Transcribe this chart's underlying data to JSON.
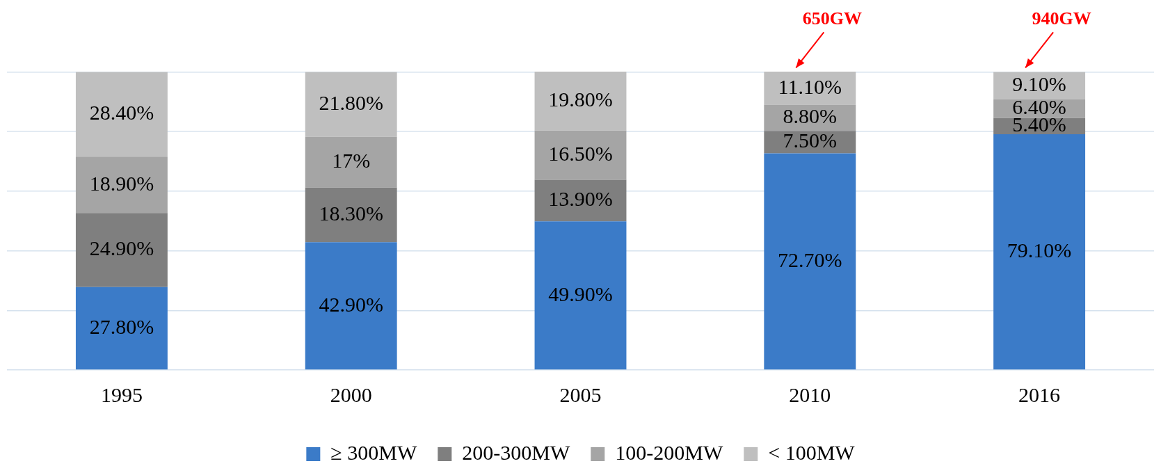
{
  "chart_data": {
    "type": "bar",
    "stacked": true,
    "categories": [
      "1995",
      "2000",
      "2005",
      "2010",
      "2016"
    ],
    "series": [
      {
        "name": "≥ 300MW",
        "color": "#3b7bc8",
        "values": [
          27.8,
          42.9,
          49.9,
          72.7,
          79.1
        ],
        "value_labels": [
          "27.80%",
          "42.90%",
          "49.90%",
          "72.70%",
          "79.10%"
        ]
      },
      {
        "name": "200-300MW",
        "color": "#7f7f7f",
        "values": [
          24.9,
          18.3,
          13.9,
          7.5,
          5.4
        ],
        "value_labels": [
          "24.90%",
          "18.30%",
          "13.90%",
          "7.50%",
          "5.40%"
        ]
      },
      {
        "name": "100-200MW",
        "color": "#a5a5a5",
        "values": [
          18.9,
          17,
          16.5,
          8.8,
          6.4
        ],
        "value_labels": [
          "18.90%",
          "17%",
          "16.50%",
          "8.80%",
          "6.40%"
        ]
      },
      {
        "name": "< 100MW",
        "color": "#bfbfbf",
        "values": [
          28.4,
          21.8,
          19.8,
          11.1,
          9.1
        ],
        "value_labels": [
          "28.40%",
          "21.80%",
          "19.80%",
          "11.10%",
          "9.10%"
        ]
      }
    ],
    "ylim": [
      0,
      100.1
    ],
    "yticks": [
      {
        "value": 0,
        "label": null
      },
      {
        "value": 20,
        "label": null
      },
      {
        "value": 40,
        "label": null
      },
      {
        "value": 60,
        "label": null
      },
      {
        "value": 80,
        "label": null
      },
      {
        "value": 100,
        "label": null
      }
    ],
    "tick_labels": "x",
    "grid": "y",
    "legend": "bottom",
    "annotations": [
      {
        "text": "650GW",
        "x": "2010",
        "y": 100
      },
      {
        "text": "940GW",
        "x": "2016",
        "y": 100
      }
    ]
  }
}
